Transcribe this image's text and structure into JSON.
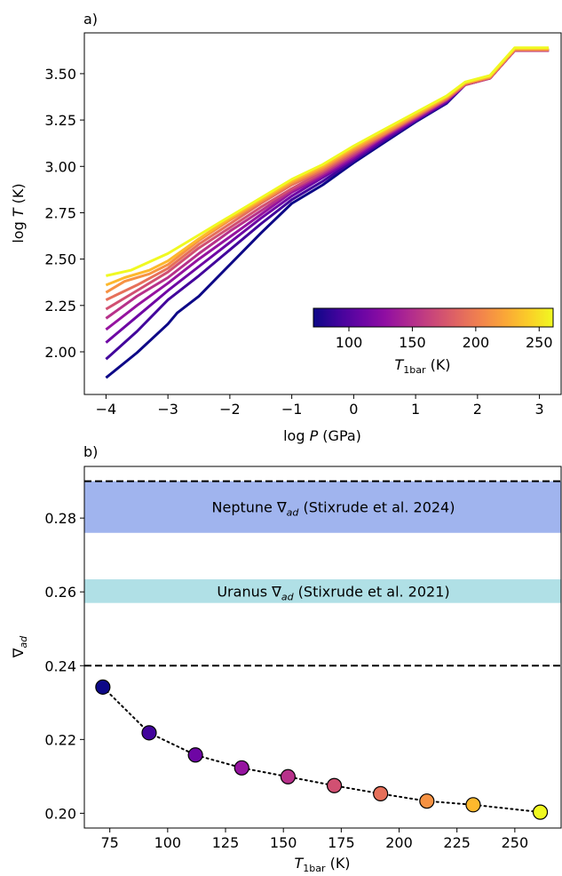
{
  "colors": {
    "neptune_band": "#a0b4ee",
    "uranus_band": "#b0e0e6",
    "dashed_line": "#000000",
    "colormap": "plasma"
  },
  "chart_data": [
    {
      "type": "line",
      "panel_label": "a)",
      "xlabel": "log P (GPa)",
      "ylabel": "log T (K)",
      "xlim": [
        -4.35,
        3.35
      ],
      "ylim": [
        1.77,
        3.72
      ],
      "xticks": [
        -4,
        -3,
        -2,
        -1,
        0,
        1,
        2,
        3
      ],
      "xtick_labels": [
        "−4",
        "−3",
        "−2",
        "−1",
        "0",
        "1",
        "2",
        "3"
      ],
      "yticks": [
        2.0,
        2.25,
        2.5,
        2.75,
        3.0,
        3.25,
        3.5
      ],
      "ytick_labels": [
        "2.00",
        "2.25",
        "2.50",
        "2.75",
        "3.00",
        "3.25",
        "3.50"
      ],
      "grid": false,
      "colorbar": {
        "label": "T1bar (K)",
        "range": [
          72,
          261
        ],
        "ticks": [
          100,
          150,
          200,
          250
        ],
        "tick_labels": [
          "100",
          "150",
          "200",
          "250"
        ],
        "placement": "lower-right"
      },
      "series": [
        {
          "t1bar": 72,
          "x": [
            -4,
            -3.5,
            -3,
            -2.85,
            -2.5,
            -2,
            -1.5,
            -1,
            -0.5,
            0,
            0.5,
            1,
            1.5,
            1.8,
            2.2,
            2.6,
            3.15
          ],
          "y": [
            1.86,
            1.995,
            2.15,
            2.21,
            2.3,
            2.47,
            2.64,
            2.8,
            2.9,
            3.02,
            3.13,
            3.24,
            3.34,
            3.44,
            3.475,
            3.625,
            3.625
          ]
        },
        {
          "t1bar": 92,
          "x": [
            -4,
            -3.5,
            -3,
            -2.5,
            -2,
            -1.5,
            -1,
            -0.5,
            0,
            0.5,
            1,
            1.5,
            1.8,
            2.2,
            2.6,
            3.15
          ],
          "y": [
            1.96,
            2.11,
            2.28,
            2.41,
            2.55,
            2.69,
            2.82,
            2.92,
            3.03,
            3.14,
            3.245,
            3.345,
            3.44,
            3.475,
            3.625,
            3.625
          ]
        },
        {
          "t1bar": 112,
          "x": [
            -4,
            -3.5,
            -3,
            -2.5,
            -2,
            -1.5,
            -1,
            -0.5,
            0,
            0.5,
            1,
            1.5,
            1.8,
            2.2,
            2.6,
            3.15
          ],
          "y": [
            2.05,
            2.19,
            2.33,
            2.46,
            2.59,
            2.72,
            2.84,
            2.94,
            3.04,
            3.15,
            3.25,
            3.35,
            3.44,
            3.475,
            3.625,
            3.625
          ]
        },
        {
          "t1bar": 132,
          "x": [
            -4,
            -3.5,
            -3,
            -2.5,
            -2,
            -1.5,
            -1,
            -0.5,
            0,
            0.5,
            1,
            1.5,
            1.8,
            2.2,
            2.6,
            3.15
          ],
          "y": [
            2.12,
            2.25,
            2.37,
            2.5,
            2.62,
            2.74,
            2.86,
            2.95,
            3.05,
            3.16,
            3.255,
            3.355,
            3.44,
            3.475,
            3.625,
            3.625
          ]
        },
        {
          "t1bar": 152,
          "x": [
            -4,
            -3.5,
            -3,
            -2.5,
            -2,
            -1.5,
            -1,
            -0.5,
            0,
            0.5,
            1,
            1.5,
            1.8,
            2.2,
            2.6,
            3.15
          ],
          "y": [
            2.18,
            2.3,
            2.4,
            2.53,
            2.65,
            2.76,
            2.87,
            2.96,
            3.06,
            3.165,
            3.26,
            3.36,
            3.44,
            3.475,
            3.625,
            3.625
          ]
        },
        {
          "t1bar": 172,
          "x": [
            -4,
            -3.5,
            -3,
            -2.5,
            -2,
            -1.5,
            -1,
            -0.5,
            0,
            0.5,
            1,
            1.5,
            1.8,
            2.2,
            2.6,
            3.15
          ],
          "y": [
            2.23,
            2.33,
            2.43,
            2.56,
            2.67,
            2.78,
            2.88,
            2.97,
            3.07,
            3.17,
            3.265,
            3.36,
            3.44,
            3.475,
            3.625,
            3.625
          ]
        },
        {
          "t1bar": 192,
          "x": [
            -4,
            -3.5,
            -3,
            -2.5,
            -2,
            -1.5,
            -1,
            -0.5,
            0,
            0.5,
            1,
            1.5,
            1.8,
            2.2,
            2.6,
            3.15
          ],
          "y": [
            2.28,
            2.36,
            2.45,
            2.58,
            2.69,
            2.8,
            2.9,
            2.98,
            3.08,
            3.175,
            3.27,
            3.365,
            3.445,
            3.48,
            3.63,
            3.63
          ]
        },
        {
          "t1bar": 212,
          "x": [
            -4,
            -3.7,
            -3.3,
            -3,
            -2.5,
            -2,
            -1.5,
            -1,
            -0.5,
            0,
            0.5,
            1,
            1.5,
            1.8,
            2.2,
            2.6,
            3.15
          ],
          "y": [
            2.32,
            2.38,
            2.42,
            2.47,
            2.6,
            2.71,
            2.81,
            2.91,
            2.99,
            3.09,
            3.18,
            3.275,
            3.37,
            3.45,
            3.48,
            3.63,
            3.63
          ]
        },
        {
          "t1bar": 232,
          "x": [
            -4,
            -3.7,
            -3.3,
            -3,
            -2.5,
            -2,
            -1.5,
            -1,
            -0.5,
            0,
            0.5,
            1,
            1.5,
            1.8,
            2.2,
            2.6,
            3.15
          ],
          "y": [
            2.36,
            2.4,
            2.44,
            2.49,
            2.61,
            2.72,
            2.82,
            2.92,
            3.0,
            3.1,
            3.19,
            3.28,
            3.375,
            3.45,
            3.485,
            3.635,
            3.635
          ]
        },
        {
          "t1bar": 261,
          "x": [
            -4,
            -3.6,
            -3,
            -2.5,
            -2,
            -1.5,
            -1,
            -0.5,
            0,
            0.5,
            1,
            1.5,
            1.8,
            2.2,
            2.6,
            3.15
          ],
          "y": [
            2.41,
            2.44,
            2.53,
            2.63,
            2.73,
            2.83,
            2.93,
            3.01,
            3.11,
            3.2,
            3.29,
            3.38,
            3.455,
            3.49,
            3.64,
            3.64
          ]
        }
      ]
    },
    {
      "type": "scatter",
      "panel_label": "b)",
      "xlabel": "T1bar (K)",
      "ylabel": "∇ad",
      "xlim": [
        64,
        270
      ],
      "ylim": [
        0.196,
        0.294
      ],
      "xticks": [
        75,
        100,
        125,
        150,
        175,
        200,
        225,
        250
      ],
      "xtick_labels": [
        "75",
        "100",
        "125",
        "150",
        "175",
        "200",
        "225",
        "250"
      ],
      "yticks": [
        0.2,
        0.22,
        0.24,
        0.26,
        0.28
      ],
      "ytick_labels": [
        "0.20",
        "0.22",
        "0.24",
        "0.26",
        "0.28"
      ],
      "grid": false,
      "x": [
        72,
        92,
        112,
        132,
        152,
        172,
        192,
        212,
        232,
        261
      ],
      "y": [
        0.2342,
        0.2218,
        0.2158,
        0.2123,
        0.2099,
        0.2075,
        0.2053,
        0.2033,
        0.2023,
        0.2003
      ],
      "line_style": "dotted",
      "bands": [
        {
          "label": "Neptune ∇ad (Stixrude et al. 2024)",
          "y0": 0.276,
          "y1": 0.29
        },
        {
          "label": "Uranus ∇ad (Stixrude et al. 2021)",
          "y0": 0.257,
          "y1": 0.2634
        }
      ],
      "hlines": [
        0.29,
        0.24
      ]
    }
  ]
}
